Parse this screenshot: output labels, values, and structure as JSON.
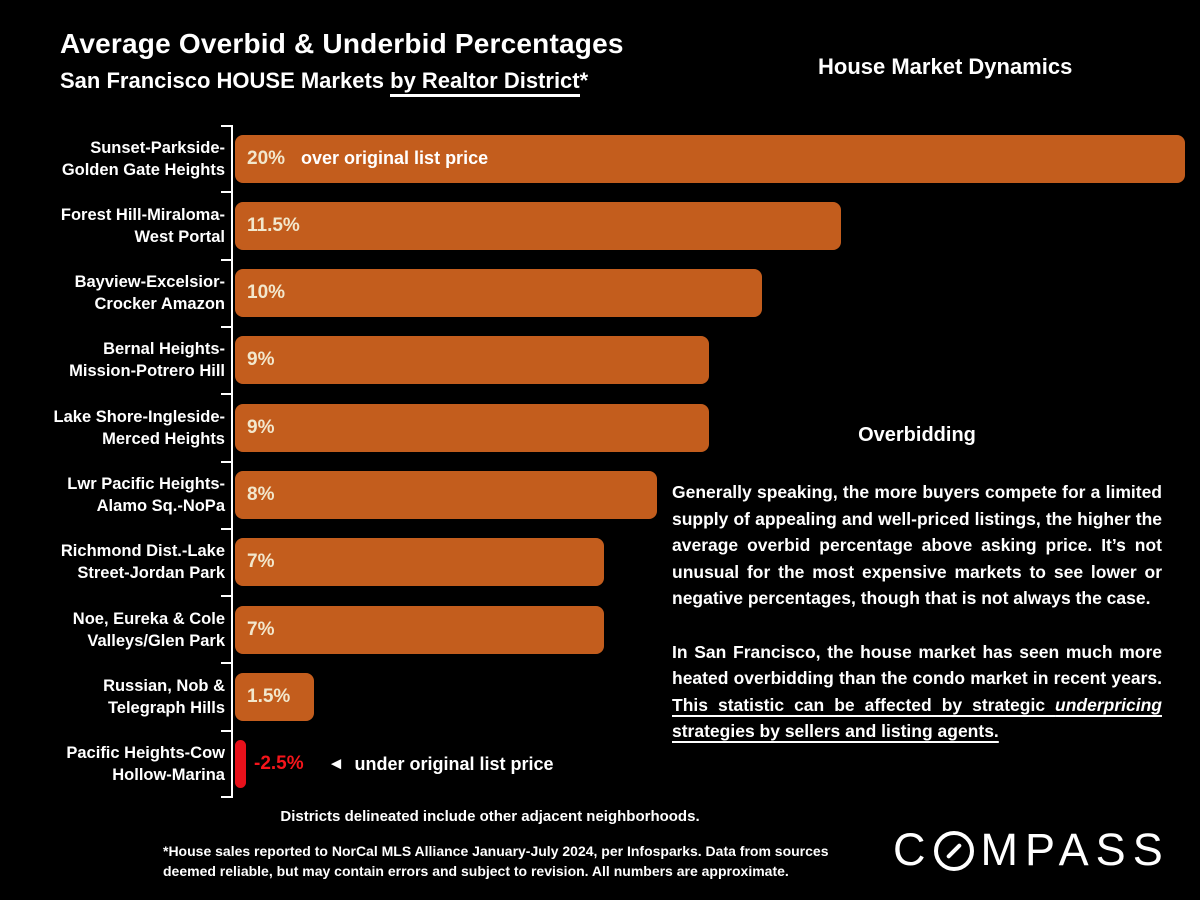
{
  "header": {
    "title": "Average Overbid & Underbid Percentages",
    "subtitle_prefix": "San Francisco HOUSE Markets ",
    "subtitle_underlined": "by Realtor District",
    "subtitle_suffix": "*",
    "tagline": "House Market Dynamics"
  },
  "chart_data": {
    "type": "bar",
    "orientation": "horizontal",
    "title": "Average Overbid & Underbid Percentages, San Francisco HOUSE Markets by Realtor District",
    "unit": "%",
    "xlim": [
      -2.5,
      20
    ],
    "grid": false,
    "legend": false,
    "categories": [
      "Sunset-Parkside-\nGolden Gate Heights",
      "Forest Hill-Miraloma-\nWest Portal",
      "Bayview-Excelsior-\nCrocker Amazon",
      "Bernal Heights-\nMission-Potrero Hill",
      "Lake Shore-Ingleside-\nMerced Heights",
      "Lwr Pacific Heights-\nAlamo Sq.-NoPa",
      "Richmond Dist.-Lake\nStreet-Jordan Park",
      "Noe, Eureka & Cole\nValleys/Glen Park",
      "Russian, Nob &\nTelegraph Hills",
      "Pacific Heights-Cow\nHollow-Marina"
    ],
    "values": [
      20,
      11.5,
      10,
      9,
      9,
      8,
      7,
      7,
      1.5,
      -2.5
    ],
    "value_labels": [
      "20%",
      "11.5%",
      "10%",
      "9%",
      "9%",
      "8%",
      "7%",
      "7%",
      "1.5%",
      "-2.5%"
    ],
    "first_bar_note": "over original list price",
    "negative_arrow": "◄",
    "negative_note": "under original list price",
    "colors": {
      "positive_bar": "#C35D1D",
      "negative_bar": "#E8111B",
      "negative_text": "#F5151B",
      "value_text": "#F2E7CC",
      "axis": "#ffffff"
    }
  },
  "overbidding": {
    "heading": "Overbidding",
    "para1": "Generally speaking, the more buyers compete for a limited supply of appealing and well-priced listings, the higher the average overbid percentage above asking price. It’s not unusual for the most expensive markets to see lower or negative percentages, though that is not always the case.",
    "para2_plain": "In San Francisco, the house market has seen much more heated overbidding than the condo market in recent years. ",
    "para2_underlined1": "This statistic can be affected by strategic ",
    "para2_italic": "underpricing",
    "para2_underlined2": " strategies by sellers and listing agents."
  },
  "footer": {
    "districts_note": "Districts delineated include other adjacent neighborhoods.",
    "footnote_line1": "*House sales reported to NorCal MLS Alliance January-July 2024, per Infosparks. Data from sources",
    "footnote_line2": "deemed reliable, but may contain errors and subject to revision. All numbers are approximate."
  },
  "logo": {
    "part1": "C",
    "part2": "MPASS",
    "name": "COMPASS"
  }
}
